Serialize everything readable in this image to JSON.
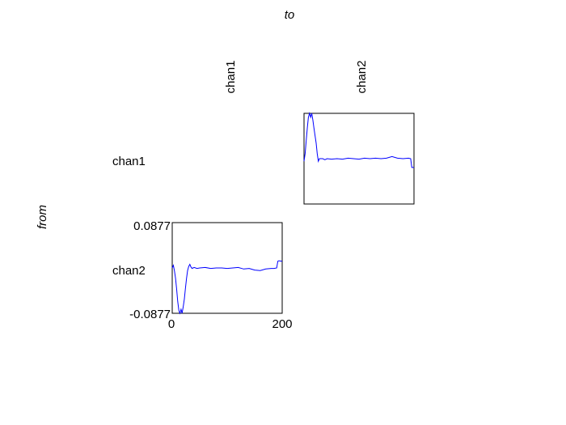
{
  "figure": {
    "top_label": "to",
    "side_label": "from",
    "columns": [
      "chan1",
      "chan2"
    ],
    "rows": [
      "chan1",
      "chan2"
    ]
  },
  "chart_data": {
    "type": "line",
    "layout": "2x2 matrix, only off-diagonal panels drawn",
    "x_tick_labels": [
      "0",
      "200"
    ],
    "y_tick_labels": [
      "0.0877",
      "-0.0877"
    ],
    "xlim": [
      0,
      200
    ],
    "ylim": [
      -0.0877,
      0.0877
    ],
    "grid": false,
    "line_color": "#0000ff",
    "panels": [
      {
        "row": "chan1",
        "col": "chan2",
        "x": [
          0,
          2,
          4,
          6,
          8,
          10,
          12,
          14,
          16,
          18,
          20,
          22,
          24,
          26,
          28,
          30,
          34,
          38,
          42,
          50,
          60,
          70,
          80,
          90,
          100,
          110,
          120,
          130,
          140,
          150,
          160,
          170,
          180,
          190,
          194,
          196,
          200
        ],
        "y": [
          -0.005,
          0.01,
          0.035,
          0.06,
          0.08,
          0.0877,
          0.08,
          0.0877,
          0.075,
          0.06,
          0.045,
          0.03,
          0.01,
          -0.005,
          0.0,
          0.0,
          0.0,
          -0.002,
          0.0,
          -0.001,
          0.0,
          -0.001,
          0.001,
          0.0,
          -0.001,
          0.001,
          0.0,
          0.001,
          0.0,
          0.001,
          0.004,
          0.001,
          0.0,
          0.001,
          0.0,
          -0.017,
          -0.017
        ]
      },
      {
        "row": "chan2",
        "col": "chan1",
        "x": [
          0,
          2,
          4,
          6,
          8,
          10,
          12,
          14,
          16,
          18,
          20,
          22,
          24,
          26,
          28,
          30,
          32,
          34,
          36,
          38,
          40,
          45,
          50,
          60,
          70,
          80,
          90,
          100,
          110,
          120,
          130,
          140,
          150,
          160,
          170,
          180,
          185,
          190,
          192,
          194,
          200
        ],
        "y": [
          0.0,
          0.005,
          -0.005,
          -0.02,
          -0.04,
          -0.065,
          -0.082,
          -0.0877,
          -0.08,
          -0.0877,
          -0.075,
          -0.06,
          -0.04,
          -0.02,
          -0.005,
          0.003,
          0.007,
          0.002,
          -0.001,
          0.0,
          0.001,
          -0.001,
          0.0,
          0.001,
          -0.001,
          0.0,
          0.0,
          -0.001,
          0.0,
          0.001,
          -0.002,
          -0.001,
          -0.004,
          -0.005,
          -0.002,
          -0.001,
          -0.001,
          0.0,
          0.013,
          0.014,
          0.013
        ]
      }
    ]
  }
}
